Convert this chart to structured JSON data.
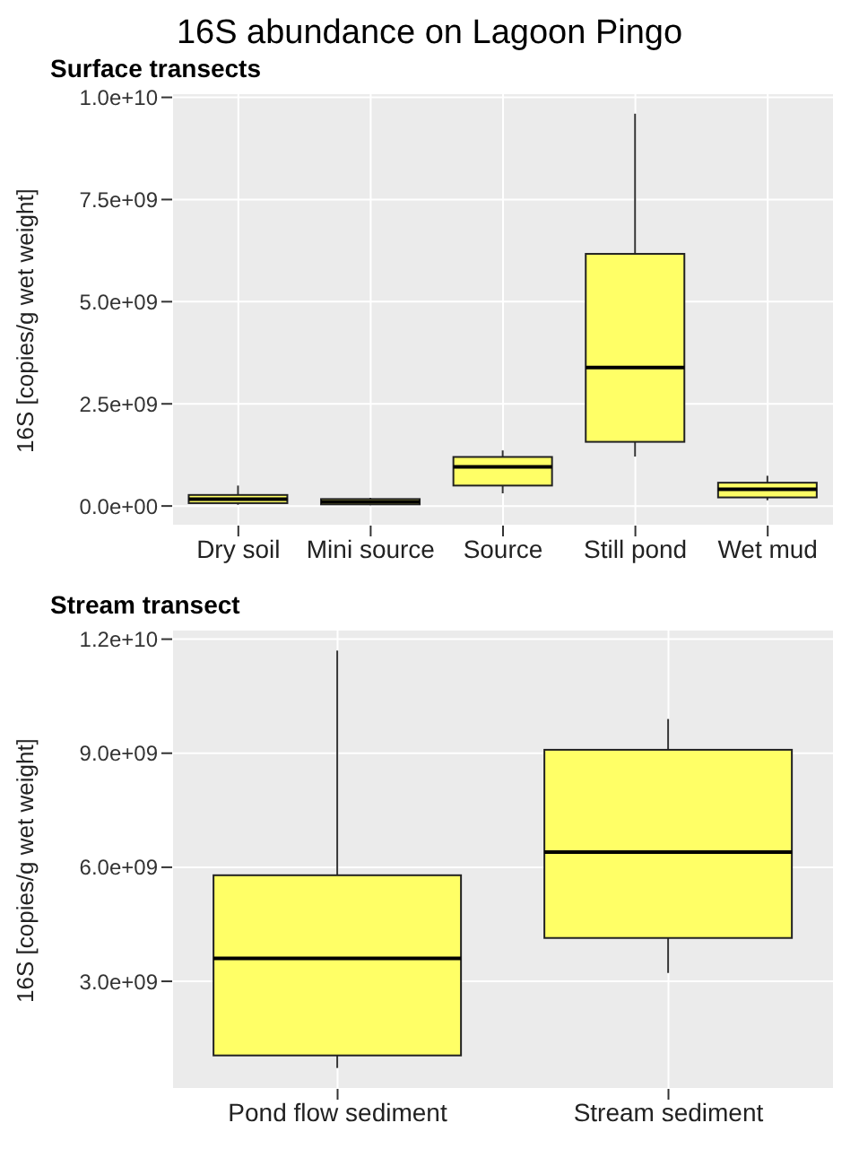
{
  "chart_data": [
    {
      "type": "box",
      "title": "16S abundance on Lagoon Pingo",
      "subtitle": "Surface transects",
      "ylabel": "16S [copies/g wet weight]",
      "categories": [
        "Dry soil",
        "Mini source",
        "Source",
        "Still pond",
        "Wet mud"
      ],
      "ylim": [
        -480000000,
        10100000000
      ],
      "yticks": [
        {
          "value": 0,
          "label": "0.0e+00"
        },
        {
          "value": 2500000000,
          "label": "2.5e+09"
        },
        {
          "value": 5000000000,
          "label": "5.0e+09"
        },
        {
          "value": 7500000000,
          "label": "7.5e+09"
        },
        {
          "value": 10000000000,
          "label": "1.0e+10"
        }
      ],
      "grid": true,
      "series": [
        {
          "color": "#ffff66",
          "boxes": [
            {
              "low": 30000000,
              "q1": 70000000,
              "median": 170000000,
              "q3": 270000000,
              "high": 500000000
            },
            {
              "low": 20000000,
              "q1": 40000000,
              "median": 100000000,
              "q3": 170000000,
              "high": 200000000
            },
            {
              "low": 310000000,
              "q1": 500000000,
              "median": 960000000,
              "q3": 1200000000,
              "high": 1360000000
            },
            {
              "low": 1210000000,
              "q1": 1570000000,
              "median": 3390000000,
              "q3": 6170000000,
              "high": 9600000000
            },
            {
              "low": 140000000,
              "q1": 210000000,
              "median": 410000000,
              "q3": 570000000,
              "high": 740000000
            }
          ]
        }
      ]
    },
    {
      "type": "box",
      "title": "Stream transect",
      "ylabel": "16S [copies/g wet weight]",
      "categories": [
        "Pond flow sediment",
        "Stream sediment"
      ],
      "ylim": [
        170000000,
        12250000000
      ],
      "yticks": [
        {
          "value": 3000000000,
          "label": "3.0e+09"
        },
        {
          "value": 6000000000,
          "label": "6.0e+09"
        },
        {
          "value": 9000000000,
          "label": "9.0e+09"
        },
        {
          "value": 12000000000,
          "label": "1.2e+10"
        }
      ],
      "grid": true,
      "series": [
        {
          "color": "#ffff66",
          "boxes": [
            {
              "low": 720000000,
              "q1": 1050000000,
              "median": 3600000000,
              "q3": 5790000000,
              "high": 11700000000
            },
            {
              "low": 3220000000,
              "q1": 4140000000,
              "median": 6400000000,
              "q3": 9090000000,
              "high": 9900000000
            }
          ]
        }
      ]
    }
  ]
}
